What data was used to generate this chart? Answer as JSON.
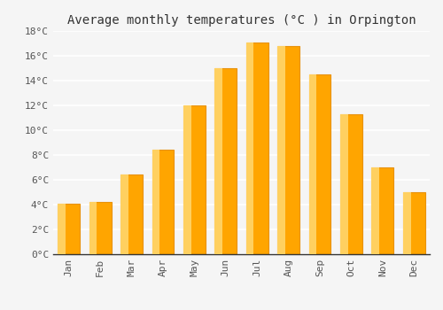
{
  "title": "Average monthly temperatures (°C ) in Orpington",
  "months": [
    "Jan",
    "Feb",
    "Mar",
    "Apr",
    "May",
    "Jun",
    "Jul",
    "Aug",
    "Sep",
    "Oct",
    "Nov",
    "Dec"
  ],
  "values": [
    4.1,
    4.2,
    6.4,
    8.4,
    12.0,
    15.0,
    17.1,
    16.8,
    14.5,
    11.3,
    7.0,
    5.0
  ],
  "bar_color_main": "#FFA500",
  "bar_color_light": "#FFD060",
  "bar_color_edge": "#E8920A",
  "ylim": [
    0,
    18
  ],
  "yticks": [
    0,
    2,
    4,
    6,
    8,
    10,
    12,
    14,
    16,
    18
  ],
  "ytick_labels": [
    "0°C",
    "2°C",
    "4°C",
    "6°C",
    "8°C",
    "10°C",
    "12°C",
    "14°C",
    "16°C",
    "18°C"
  ],
  "background_color": "#f5f5f5",
  "plot_bg_color": "#f5f5f5",
  "grid_color": "#ffffff",
  "title_fontsize": 10,
  "tick_fontsize": 8,
  "font_family": "monospace",
  "tick_color": "#555555",
  "spine_color": "#333333",
  "bar_width": 0.7
}
